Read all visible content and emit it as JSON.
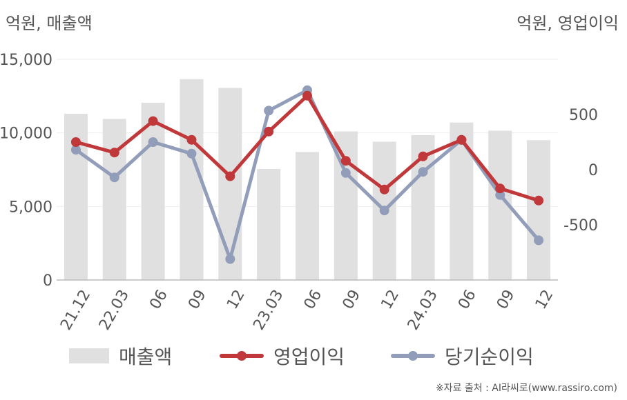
{
  "header": {
    "left_unit": "억원, 매출액",
    "right_unit": "억원, 영업이익"
  },
  "legend": {
    "revenue": "매출액",
    "operating_profit": "영업이익",
    "net_income": "당기순이익"
  },
  "source": "※자료 출처 : AI라씨로(www.rassiro.com)",
  "colors": {
    "revenue": "#e0e0e0",
    "operating_profit": "#c0383a",
    "net_income": "#929eb9",
    "axis": "#bbbbbb",
    "grid": "#eeeeee",
    "text": "#555555"
  },
  "chart_data": {
    "type": "bar+line",
    "categories": [
      "21.12",
      "22.03",
      "06",
      "09",
      "12",
      "23.03",
      "06",
      "09",
      "12",
      "24.03",
      "06",
      "09",
      "12"
    ],
    "left_axis": {
      "ylim": [
        0,
        15000
      ],
      "ticks": [
        "0",
        "5,000",
        "10,000",
        "15,000"
      ],
      "tick_values": [
        0,
        5000,
        10000,
        15000
      ]
    },
    "right_axis": {
      "ylim": [
        -1000,
        1000
      ],
      "ticks": [
        "-500",
        "0",
        "500"
      ],
      "tick_values": [
        -500,
        0,
        500
      ]
    },
    "series": [
      {
        "name": "매출액",
        "type": "bar",
        "axis": "left",
        "values": [
          11300,
          10950,
          12050,
          13650,
          13050,
          7550,
          8700,
          10100,
          9400,
          9850,
          10700,
          10150,
          9500
        ]
      },
      {
        "name": "영업이익",
        "type": "line",
        "axis": "right",
        "values": [
          250,
          155,
          440,
          270,
          -60,
          345,
          670,
          80,
          -180,
          120,
          270,
          -170,
          -280
        ]
      },
      {
        "name": "당기순이익",
        "type": "line",
        "axis": "right",
        "values": [
          180,
          -70,
          250,
          145,
          -810,
          535,
          720,
          -30,
          -370,
          -20,
          270,
          -230,
          -640
        ]
      }
    ],
    "legend_position": "bottom",
    "grid": true
  }
}
